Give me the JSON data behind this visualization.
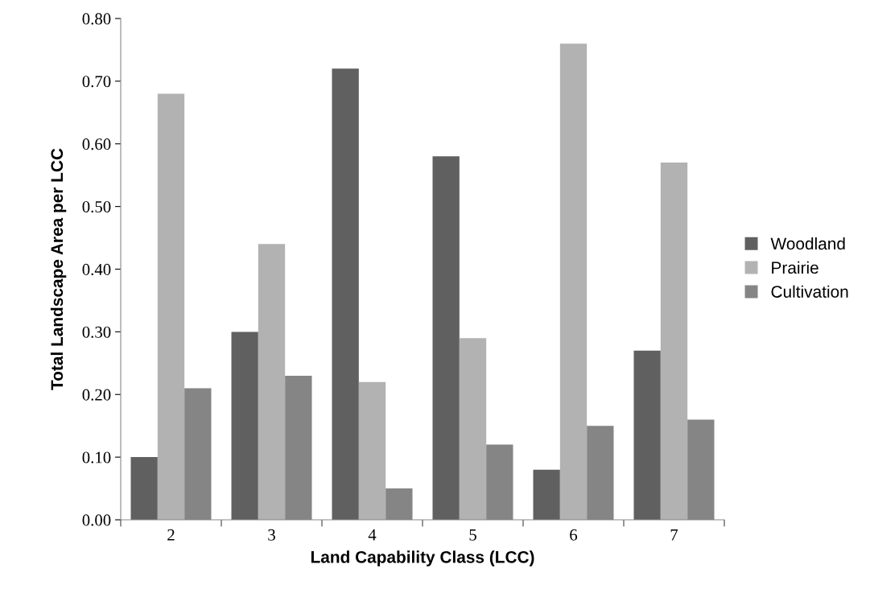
{
  "chart_data": {
    "type": "bar",
    "xlabel": "Land Capability Class (LCC)",
    "ylabel": "Total Landscape Area per LCC",
    "categories": [
      "2",
      "3",
      "4",
      "5",
      "6",
      "7"
    ],
    "series": [
      {
        "name": "Woodland",
        "color": "#606060",
        "values": [
          0.1,
          0.3,
          0.72,
          0.58,
          0.08,
          0.27
        ]
      },
      {
        "name": "Prairie",
        "color": "#b2b2b2",
        "values": [
          0.68,
          0.44,
          0.22,
          0.29,
          0.76,
          0.57
        ]
      },
      {
        "name": "Cultivation",
        "color": "#858585",
        "values": [
          0.21,
          0.23,
          0.05,
          0.12,
          0.15,
          0.16
        ]
      }
    ],
    "ylim": [
      0,
      0.8
    ],
    "yticks": [
      {
        "value": 0,
        "label": "0.00"
      },
      {
        "value": 0.1,
        "label": "0.10"
      },
      {
        "value": 0.2,
        "label": "0.20"
      },
      {
        "value": 0.3,
        "label": "0.30"
      },
      {
        "value": 0.4,
        "label": "0.40"
      },
      {
        "value": 0.5,
        "label": "0.50"
      },
      {
        "value": 0.6,
        "label": "0.60"
      },
      {
        "value": 0.7,
        "label": "0.70"
      },
      {
        "value": 0.8,
        "label": "0.80"
      }
    ],
    "grid": false,
    "legend": "right"
  }
}
